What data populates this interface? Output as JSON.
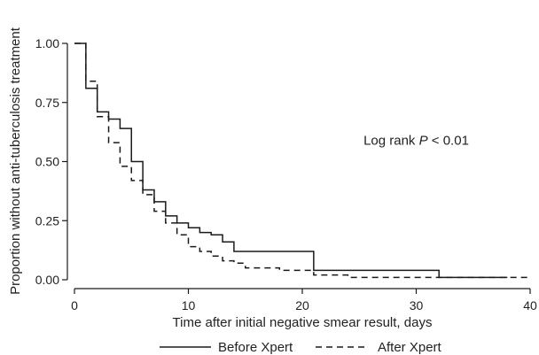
{
  "chart_data": {
    "type": "line",
    "step": true,
    "xlabel": "Time after initial negative smear result, days",
    "ylabel": "Proportion without anti-tuberculosis treatment",
    "xlim": [
      0,
      40
    ],
    "ylim": [
      0,
      1
    ],
    "x_ticks": [
      "0",
      "10",
      "20",
      "30",
      "40"
    ],
    "x_tick_values": [
      0,
      10,
      20,
      30,
      40
    ],
    "y_ticks": [
      "0.00",
      "0.25",
      "0.50",
      "0.75",
      "1.00"
    ],
    "y_tick_values": [
      0,
      0.25,
      0.5,
      0.75,
      1
    ],
    "grid": false,
    "legend_position": "bottom",
    "annotation": {
      "prefix": "Log rank ",
      "italic": "P",
      "suffix": " < 0.01",
      "x": 30,
      "y": 0.59
    },
    "series": [
      {
        "name": "Before Xpert",
        "style": "solid",
        "color": "#1a1a1a",
        "x": [
          0,
          1,
          2,
          3,
          4,
          5,
          6,
          7,
          8,
          9,
          10,
          11,
          12,
          13,
          14,
          21,
          32,
          38
        ],
        "y": [
          1.0,
          0.81,
          0.71,
          0.68,
          0.64,
          0.5,
          0.38,
          0.33,
          0.27,
          0.24,
          0.22,
          0.2,
          0.19,
          0.16,
          0.12,
          0.04,
          0.01,
          0.01
        ]
      },
      {
        "name": "After Xpert",
        "style": "dashed",
        "color": "#1a1a1a",
        "x": [
          0,
          1,
          2,
          3,
          4,
          5,
          6,
          7,
          8,
          9,
          10,
          11,
          12,
          13,
          14,
          15,
          18,
          21,
          24,
          40
        ],
        "y": [
          1.0,
          0.84,
          0.69,
          0.58,
          0.48,
          0.42,
          0.36,
          0.29,
          0.24,
          0.19,
          0.14,
          0.12,
          0.1,
          0.08,
          0.07,
          0.05,
          0.04,
          0.02,
          0.01,
          0.01
        ]
      }
    ]
  }
}
